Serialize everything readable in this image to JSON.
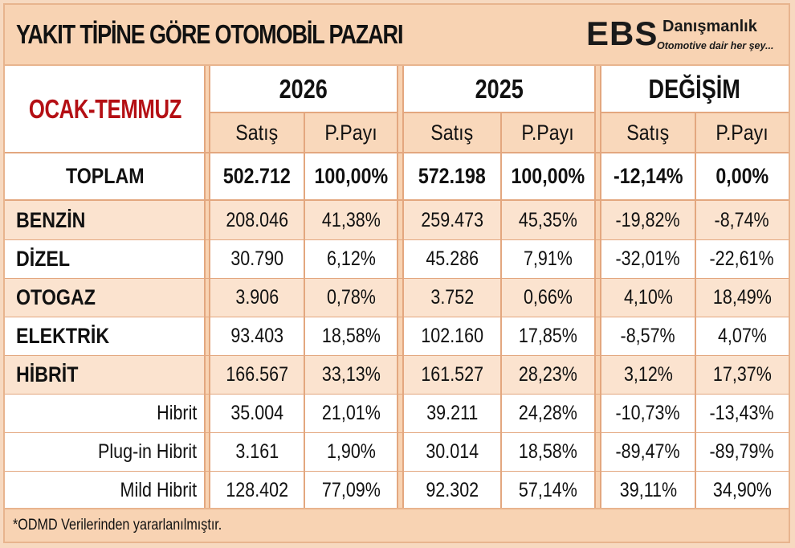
{
  "header": {
    "title": "YAKIT TİPİNE GÖRE OTOMOBİL PAZARI",
    "logo": {
      "brand": "EBS",
      "name": "Danışmanlık",
      "tagline": "Otomotive dair her şey..."
    }
  },
  "table": {
    "period_label": "OCAK-TEMMUZ",
    "groups": [
      {
        "label": "2026",
        "sub": [
          "Satış",
          "P.Payı"
        ]
      },
      {
        "label": "2025",
        "sub": [
          "Satış",
          "P.Payı"
        ]
      },
      {
        "label": "DEĞİŞİM",
        "sub": [
          "Satış",
          "P.Payı"
        ]
      }
    ],
    "total": {
      "label": "TOPLAM",
      "values": [
        "502.712",
        "100,00%",
        "572.198",
        "100,00%",
        "-12,14%",
        "0,00%"
      ]
    },
    "rows": [
      {
        "label": "BENZİN",
        "values": [
          "208.046",
          "41,38%",
          "259.473",
          "45,35%",
          "-19,82%",
          "-8,74%"
        ]
      },
      {
        "label": "DİZEL",
        "values": [
          "30.790",
          "6,12%",
          "45.286",
          "7,91%",
          "-32,01%",
          "-22,61%"
        ]
      },
      {
        "label": "OTOGAZ",
        "values": [
          "3.906",
          "0,78%",
          "3.752",
          "0,66%",
          "4,10%",
          "18,49%"
        ]
      },
      {
        "label": "ELEKTRİK",
        "values": [
          "93.403",
          "18,58%",
          "102.160",
          "17,85%",
          "-8,57%",
          "4,07%"
        ]
      },
      {
        "label": "HİBRİT",
        "values": [
          "166.567",
          "33,13%",
          "161.527",
          "28,23%",
          "3,12%",
          "17,37%"
        ]
      },
      {
        "label": "Hibrit",
        "values": [
          "35.004",
          "21,01%",
          "39.211",
          "24,28%",
          "-10,73%",
          "-13,43%"
        ]
      },
      {
        "label": "Plug-in Hibrit",
        "values": [
          "3.161",
          "1,90%",
          "30.014",
          "18,58%",
          "-89,47%",
          "-89,79%"
        ]
      },
      {
        "label": "Mild Hibrit",
        "values": [
          "128.402",
          "77,09%",
          "92.302",
          "57,14%",
          "39,11%",
          "34,90%"
        ]
      }
    ]
  },
  "footnote": "*ODMD Verilerinden yararlanılmıştır.",
  "colors": {
    "accent_red": "#b40f14",
    "header_peach": "#f8d3b3",
    "row_shade": "#fbe3cf",
    "border": "#e3a77f"
  }
}
